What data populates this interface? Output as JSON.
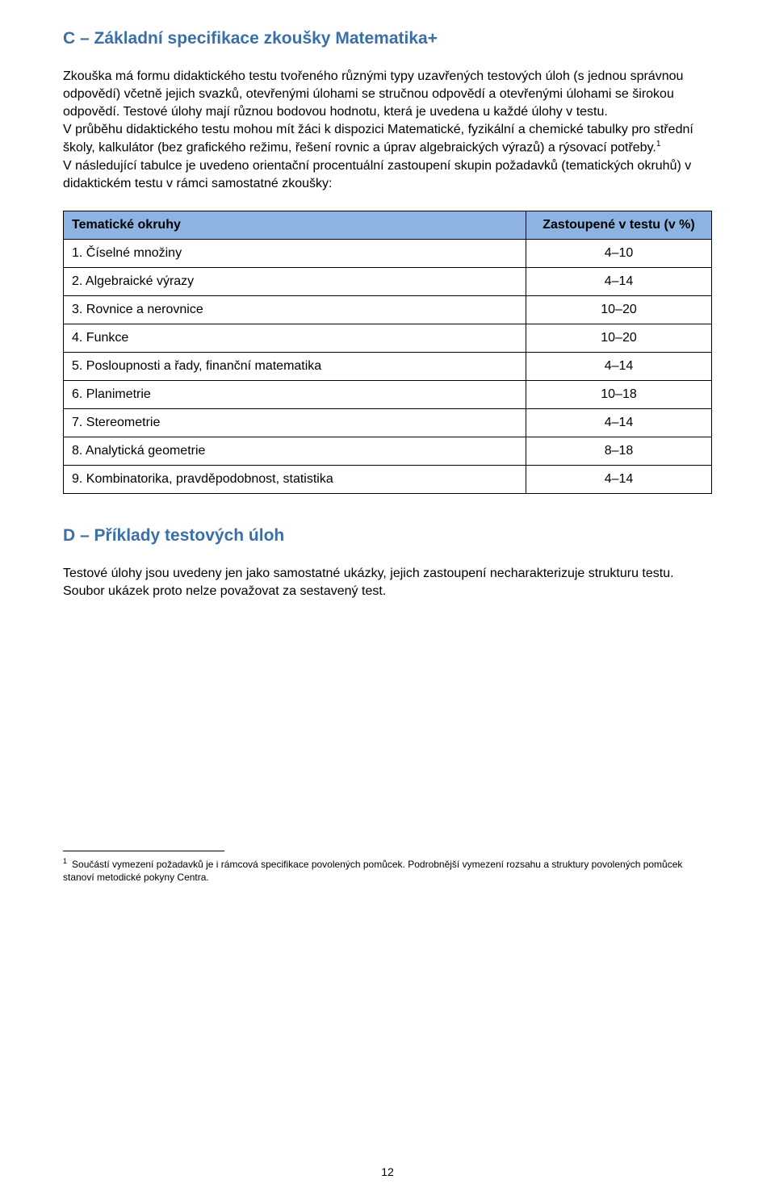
{
  "sectionC": {
    "heading": "C – Základní specifikace zkoušky Matematika+",
    "para1": "Zkouška má formu didaktického testu tvořeného různými typy uzavřených testových úloh (s jednou správnou odpovědí) včetně jejich svazků, otevřenými úlohami se stručnou odpovědí a otevřenými úlohami se širokou odpovědí. Testové úlohy mají různou bodovou hodnotu, která je uvedena u každé úlohy v testu.",
    "para2_a": "V průběhu didaktického testu mohou mít žáci k dispozici Matematické, fyzikální a chemické tabulky pro střední školy, kalkulátor (bez grafického režimu, řešení rovnic a úprav algebraických výrazů) a rýsovací potřeby.",
    "para2_sup": "1",
    "para3": "V následující tabulce je uvedeno orientační procentuální zastoupení skupin požadavků (tematických okruhů) v didaktickém testu v rámci samostatné zkoušky:"
  },
  "table": {
    "header_col1": "Tematické okruhy",
    "header_col2": "Zastoupené v testu (v %)",
    "rows": [
      {
        "label": "1. Číselné množiny",
        "value": "4–10"
      },
      {
        "label": "2. Algebraické výrazy",
        "value": "4–14"
      },
      {
        "label": "3. Rovnice a nerovnice",
        "value": "10–20"
      },
      {
        "label": "4. Funkce",
        "value": "10–20"
      },
      {
        "label": "5. Posloupnosti a řady, finanční matematika",
        "value": "4–14"
      },
      {
        "label": "6. Planimetrie",
        "value": "10–18"
      },
      {
        "label": "7. Stereometrie",
        "value": "4–14"
      },
      {
        "label": "8. Analytická geometrie",
        "value": "8–18"
      },
      {
        "label": "9. Kombinatorika, pravděpodobnost, statistika",
        "value": "4–14"
      }
    ]
  },
  "sectionD": {
    "heading": "D – Příklady testových úloh",
    "para": "Testové úlohy jsou uvedeny jen jako samostatné ukázky, jejich zastoupení necharakterizuje strukturu testu. Soubor ukázek proto nelze považovat za sestavený test."
  },
  "footnote": {
    "mark": "1",
    "text": "Součástí vymezení požadavků je i rámcová specifikace povolených pomůcek. Podrobnější vymezení rozsahu a struktury povolených pomůcek stanoví metodické pokyny Centra."
  },
  "page_number": "12",
  "colors": {
    "heading": "#3a6fa8",
    "table_header_bg": "#8db3e2",
    "text": "#000000",
    "background": "#ffffff"
  }
}
